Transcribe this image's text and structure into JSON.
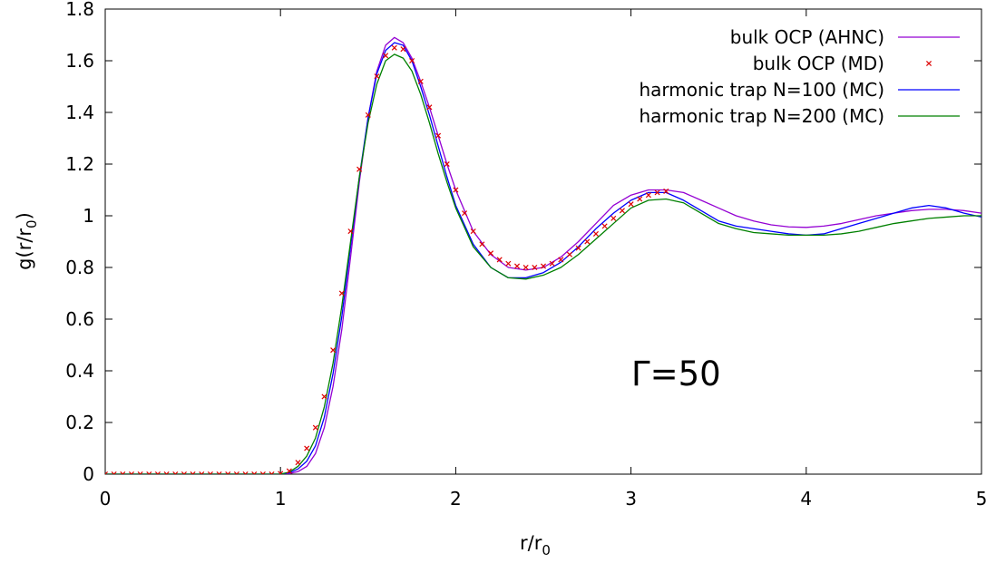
{
  "chart_data": {
    "type": "line",
    "title": "",
    "xlabel": "r/r",
    "xlabel_sub": "0",
    "ylabel": "g(r/r",
    "ylabel_sub": "0",
    "ylabel_close": ")",
    "xlim": [
      0,
      5
    ],
    "ylim": [
      0,
      1.8
    ],
    "xticks": [
      0,
      1,
      2,
      3,
      4,
      5
    ],
    "xtick_labels": [
      "0",
      "1",
      "2",
      "3",
      "4",
      "5"
    ],
    "yticks": [
      0,
      0.2,
      0.4,
      0.6,
      0.8,
      1.0,
      1.2,
      1.4,
      1.6,
      1.8
    ],
    "ytick_labels": [
      "0",
      "0.2",
      "0.4",
      "0.6",
      "0.8",
      "1",
      "1.2",
      "1.4",
      "1.6",
      "1.8"
    ],
    "grid": false,
    "legend_position": "top-right",
    "annotation": "Γ=50",
    "series": [
      {
        "name": "bulk OCP (AHNC)",
        "style": "line",
        "color": "#9400d3",
        "x": [
          0,
          1.0,
          1.05,
          1.1,
          1.15,
          1.2,
          1.25,
          1.3,
          1.35,
          1.4,
          1.45,
          1.5,
          1.55,
          1.6,
          1.65,
          1.7,
          1.75,
          1.8,
          1.85,
          1.9,
          1.95,
          2.0,
          2.1,
          2.2,
          2.3,
          2.4,
          2.5,
          2.6,
          2.7,
          2.8,
          2.9,
          3.0,
          3.1,
          3.2,
          3.3,
          3.4,
          3.5,
          3.6,
          3.7,
          3.8,
          3.9,
          4.0,
          4.1,
          4.2,
          4.3,
          4.4,
          4.5,
          4.6,
          4.7,
          4.8,
          4.9,
          5.0
        ],
        "y": [
          0,
          0,
          0.002,
          0.01,
          0.03,
          0.08,
          0.18,
          0.34,
          0.56,
          0.84,
          1.13,
          1.38,
          1.56,
          1.66,
          1.69,
          1.67,
          1.61,
          1.52,
          1.42,
          1.31,
          1.2,
          1.1,
          0.94,
          0.85,
          0.8,
          0.79,
          0.8,
          0.84,
          0.9,
          0.97,
          1.04,
          1.08,
          1.1,
          1.1,
          1.09,
          1.06,
          1.03,
          1.0,
          0.98,
          0.965,
          0.957,
          0.955,
          0.96,
          0.97,
          0.985,
          1.0,
          1.01,
          1.02,
          1.025,
          1.025,
          1.02,
          1.01
        ]
      },
      {
        "name": "bulk OCP (MD)",
        "style": "points",
        "color": "#dd0000",
        "x": [
          0,
          0.05,
          0.1,
          0.15,
          0.2,
          0.25,
          0.3,
          0.35,
          0.4,
          0.45,
          0.5,
          0.55,
          0.6,
          0.65,
          0.7,
          0.75,
          0.8,
          0.85,
          0.9,
          0.95,
          1.0,
          1.05,
          1.1,
          1.15,
          1.2,
          1.25,
          1.3,
          1.35,
          1.4,
          1.45,
          1.5,
          1.55,
          1.6,
          1.65,
          1.7,
          1.75,
          1.8,
          1.85,
          1.9,
          1.95,
          2.0,
          2.05,
          2.1,
          2.15,
          2.2,
          2.25,
          2.3,
          2.35,
          2.4,
          2.45,
          2.5,
          2.55,
          2.6,
          2.65,
          2.7,
          2.75,
          2.8,
          2.85,
          2.9,
          2.95,
          3.0,
          3.05,
          3.1,
          3.15,
          3.2
        ],
        "y": [
          0,
          0,
          0,
          0,
          0,
          0,
          0,
          0,
          0,
          0,
          0,
          0,
          0,
          0,
          0,
          0,
          0,
          0,
          0,
          0,
          0.002,
          0.012,
          0.045,
          0.1,
          0.18,
          0.3,
          0.48,
          0.7,
          0.94,
          1.18,
          1.39,
          1.54,
          1.62,
          1.65,
          1.645,
          1.6,
          1.52,
          1.42,
          1.31,
          1.2,
          1.1,
          1.01,
          0.94,
          0.89,
          0.855,
          0.83,
          0.815,
          0.805,
          0.8,
          0.8,
          0.805,
          0.815,
          0.83,
          0.85,
          0.875,
          0.9,
          0.93,
          0.96,
          0.99,
          1.02,
          1.045,
          1.065,
          1.08,
          1.09,
          1.095
        ]
      },
      {
        "name": "harmonic trap N=100 (MC)",
        "style": "line",
        "color": "#0000ff",
        "x": [
          0,
          1.0,
          1.05,
          1.1,
          1.15,
          1.2,
          1.25,
          1.3,
          1.35,
          1.4,
          1.45,
          1.5,
          1.55,
          1.6,
          1.65,
          1.7,
          1.75,
          1.8,
          1.85,
          1.9,
          1.95,
          2.0,
          2.1,
          2.2,
          2.3,
          2.4,
          2.5,
          2.6,
          2.7,
          2.8,
          2.9,
          3.0,
          3.1,
          3.2,
          3.3,
          3.4,
          3.5,
          3.6,
          3.7,
          3.8,
          3.9,
          4.0,
          4.1,
          4.2,
          4.3,
          4.4,
          4.5,
          4.6,
          4.7,
          4.8,
          4.9,
          5.0
        ],
        "y": [
          0,
          0,
          0.005,
          0.02,
          0.05,
          0.11,
          0.22,
          0.39,
          0.61,
          0.88,
          1.15,
          1.38,
          1.55,
          1.64,
          1.67,
          1.66,
          1.6,
          1.5,
          1.39,
          1.27,
          1.15,
          1.04,
          0.89,
          0.8,
          0.76,
          0.76,
          0.78,
          0.82,
          0.88,
          0.95,
          1.01,
          1.06,
          1.09,
          1.09,
          1.06,
          1.02,
          0.98,
          0.96,
          0.95,
          0.94,
          0.93,
          0.925,
          0.93,
          0.95,
          0.97,
          0.99,
          1.01,
          1.03,
          1.04,
          1.03,
          1.01,
          0.995
        ]
      },
      {
        "name": "harmonic trap N=200 (MC)",
        "style": "line",
        "color": "#008000",
        "x": [
          0,
          1.0,
          1.05,
          1.1,
          1.15,
          1.2,
          1.25,
          1.3,
          1.35,
          1.4,
          1.45,
          1.5,
          1.55,
          1.6,
          1.65,
          1.7,
          1.75,
          1.8,
          1.85,
          1.9,
          1.95,
          2.0,
          2.1,
          2.2,
          2.3,
          2.4,
          2.5,
          2.6,
          2.7,
          2.8,
          2.9,
          3.0,
          3.1,
          3.2,
          3.3,
          3.4,
          3.5,
          3.6,
          3.7,
          3.8,
          3.9,
          4.0,
          4.1,
          4.2,
          4.3,
          4.4,
          4.5,
          4.6,
          4.7,
          4.8,
          4.9,
          5.0
        ],
        "y": [
          0,
          0,
          0.008,
          0.03,
          0.07,
          0.14,
          0.26,
          0.43,
          0.65,
          0.9,
          1.15,
          1.36,
          1.51,
          1.6,
          1.625,
          1.61,
          1.56,
          1.47,
          1.36,
          1.24,
          1.13,
          1.03,
          0.88,
          0.8,
          0.76,
          0.755,
          0.77,
          0.8,
          0.85,
          0.91,
          0.97,
          1.03,
          1.06,
          1.065,
          1.05,
          1.01,
          0.97,
          0.95,
          0.935,
          0.93,
          0.925,
          0.925,
          0.925,
          0.93,
          0.94,
          0.955,
          0.97,
          0.98,
          0.99,
          0.995,
          1.0,
          1.0
        ]
      }
    ]
  }
}
